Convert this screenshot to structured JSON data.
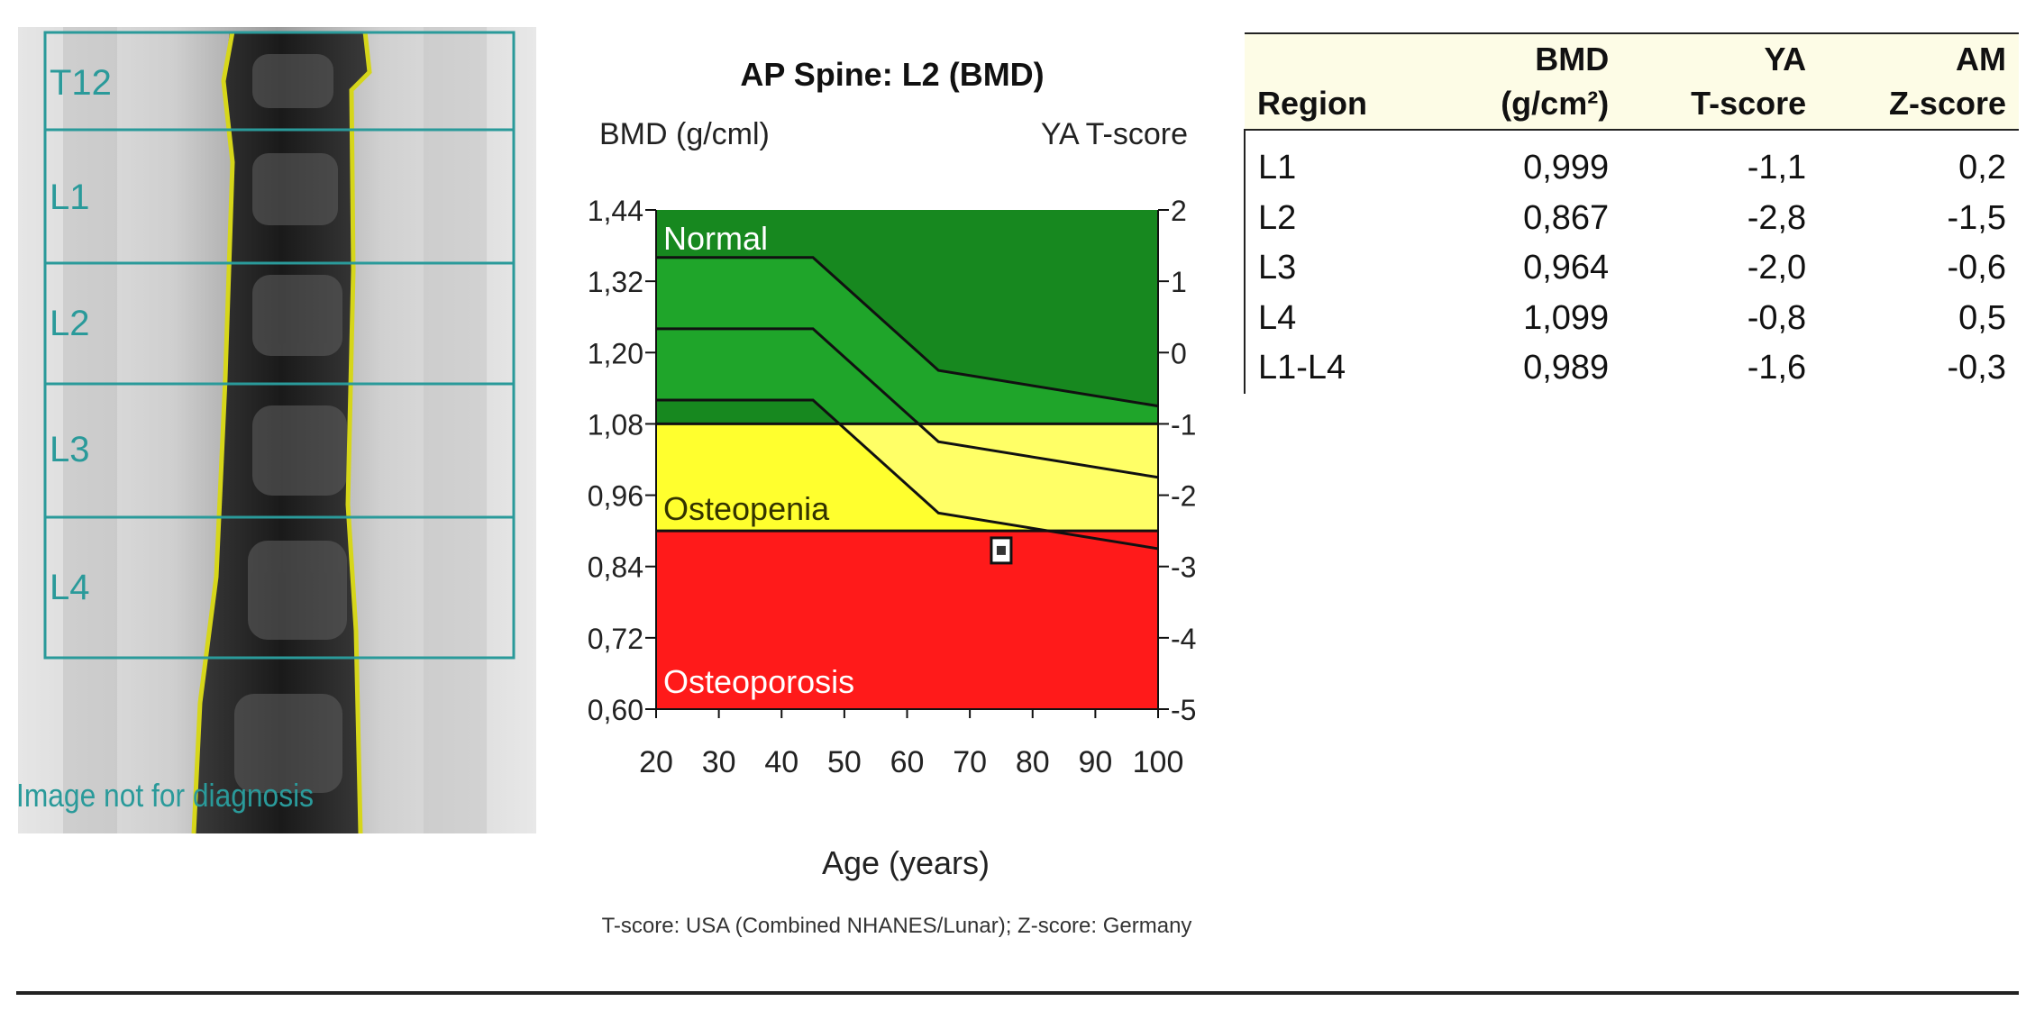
{
  "xray": {
    "vertebra_labels": [
      "T12",
      "L1",
      "L2",
      "L3",
      "L4"
    ],
    "watermark": "Image not for diagnosis",
    "box_color": "#2a9a9a",
    "outline_color": "#d6d61a"
  },
  "chart_data": {
    "type": "area",
    "title": "AP Spine: L2 (BMD)",
    "ylabel": "BMD (g/cml)",
    "y2label": "YA T-score",
    "xlabel": "Age (years)",
    "footnote": "T-score: USA (Combined NHANES/Lunar); Z-score: Germany",
    "x_ticks": [
      "20",
      "30",
      "40",
      "50",
      "60",
      "70",
      "80",
      "90",
      "100"
    ],
    "y_ticks": [
      "1,44",
      "1,32",
      "1,20",
      "1,08",
      "0,96",
      "0,84",
      "0,72",
      "0,60"
    ],
    "y2_ticks": [
      "2",
      "1",
      "0",
      "-1",
      "-2",
      "-3",
      "-4",
      "-5"
    ],
    "xlim": [
      20,
      100
    ],
    "ylim": [
      0.6,
      1.44
    ],
    "y2lim": [
      -5,
      2
    ],
    "zones": [
      {
        "name": "Normal",
        "from": 1.08,
        "to": 1.44,
        "color": "#17881f"
      },
      {
        "name": "Osteopenia",
        "from": 0.9,
        "to": 1.08,
        "color": "#ffff2e"
      },
      {
        "name": "Osteoporosis",
        "from": 0.6,
        "to": 0.9,
        "color": "#ff1a1a"
      }
    ],
    "reference_curves": [
      {
        "x": [
          20,
          45,
          65,
          100
        ],
        "y": [
          1.36,
          1.36,
          1.17,
          1.11
        ]
      },
      {
        "x": [
          20,
          45,
          65,
          100
        ],
        "y": [
          1.24,
          1.24,
          1.05,
          0.99
        ]
      },
      {
        "x": [
          20,
          45,
          65,
          100
        ],
        "y": [
          1.12,
          1.12,
          0.93,
          0.87
        ]
      }
    ],
    "points": [
      {
        "x": 75,
        "y": 0.867
      }
    ],
    "colors": {
      "band_mid": "#1fa52a",
      "band_low": "#ffff66"
    }
  },
  "table": {
    "headers": {
      "region": "Region",
      "bmd_top": "BMD",
      "bmd_unit": "(g/cm²)",
      "ya_top": "YA",
      "ya_bottom": "T-score",
      "am_top": "AM",
      "am_bottom": "Z-score"
    },
    "rows": [
      {
        "region": "L1",
        "bmd": "0,999",
        "t": "-1,1",
        "z": "0,2"
      },
      {
        "region": "L2",
        "bmd": "0,867",
        "t": "-2,8",
        "z": "-1,5"
      },
      {
        "region": "L3",
        "bmd": "0,964",
        "t": "-2,0",
        "z": "-0,6"
      },
      {
        "region": "L4",
        "bmd": "1,099",
        "t": "-0,8",
        "z": "0,5"
      },
      {
        "region": "L1-L4",
        "bmd": "0,989",
        "t": "-1,6",
        "z": "-0,3"
      }
    ]
  }
}
